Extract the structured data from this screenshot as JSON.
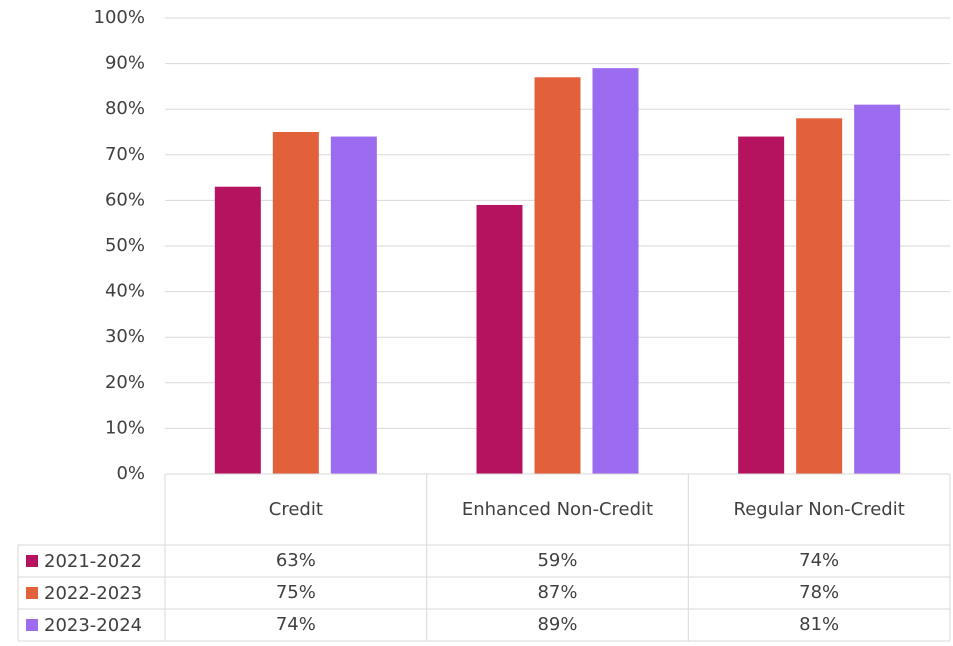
{
  "chart_data": {
    "type": "bar",
    "categories": [
      "Credit",
      "Enhanced Non-Credit",
      "Regular Non-Credit"
    ],
    "series": [
      {
        "name": "2021-2022",
        "color": "#b5135f",
        "values": [
          63,
          59,
          74
        ],
        "value_labels": [
          "63%",
          "59%",
          "74%"
        ]
      },
      {
        "name": "2022-2023",
        "color": "#e2603a",
        "values": [
          75,
          87,
          78
        ],
        "value_labels": [
          "75%",
          "87%",
          "78%"
        ]
      },
      {
        "name": "2023-2024",
        "color": "#9b6cf0",
        "values": [
          74,
          89,
          81
        ],
        "value_labels": [
          "74%",
          "89%",
          "81%"
        ]
      }
    ],
    "ylim": [
      0,
      100
    ],
    "yticks": [
      {
        "value": 0,
        "label": "0%"
      },
      {
        "value": 10,
        "label": "10%"
      },
      {
        "value": 20,
        "label": "20%"
      },
      {
        "value": 30,
        "label": "30%"
      },
      {
        "value": 40,
        "label": "40%"
      },
      {
        "value": 50,
        "label": "50%"
      },
      {
        "value": 60,
        "label": "60%"
      },
      {
        "value": 70,
        "label": "70%"
      },
      {
        "value": 80,
        "label": "80%"
      },
      {
        "value": 90,
        "label": "90%"
      },
      {
        "value": 100,
        "label": "100%"
      }
    ],
    "grid": true,
    "legend": "table"
  }
}
